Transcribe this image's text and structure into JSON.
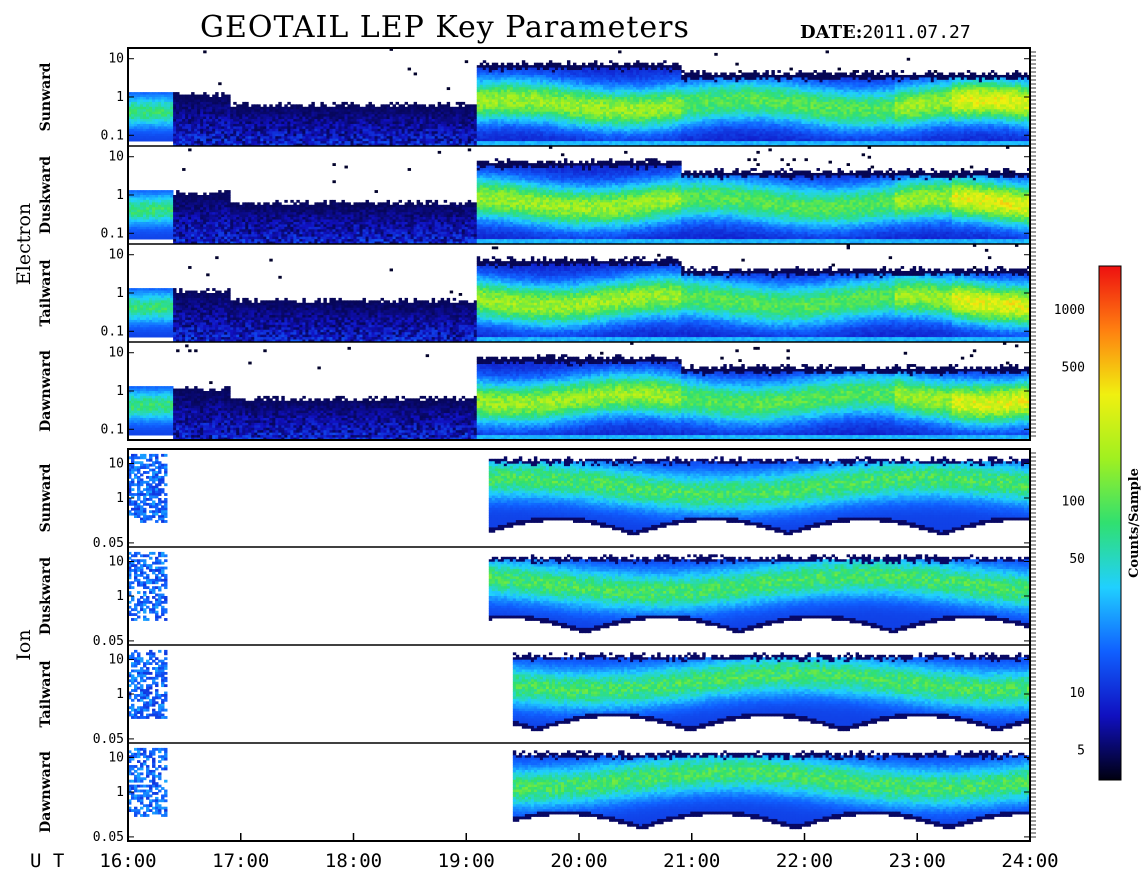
{
  "header": {
    "title": "GEOTAIL LEP Key Parameters",
    "date_label": "DATE:",
    "date_value": "2011.07.27"
  },
  "colors": {
    "background": "#ffffff",
    "axis": "#000000"
  },
  "chart_data": {
    "type": "heatmap",
    "title": "GEOTAIL LEP Key Parameters",
    "date": "2011.07.27",
    "xlabel": "U T",
    "x_ticks": [
      "16:00",
      "17:00",
      "18:00",
      "19:00",
      "20:00",
      "21:00",
      "22:00",
      "23:00",
      "24:00"
    ],
    "xlim": [
      "16:00",
      "24:00"
    ],
    "groups": [
      {
        "name": "Electron",
        "panels": [
          {
            "name": "Sunward",
            "y_ticks": [
              "10",
              "1",
              "0.1"
            ]
          },
          {
            "name": "Duskward",
            "y_ticks": [
              "10",
              "1",
              "0.1"
            ]
          },
          {
            "name": "Tailward",
            "y_ticks": [
              "10",
              "1",
              "0.1"
            ]
          },
          {
            "name": "Dawnward",
            "y_ticks": [
              "10",
              "1",
              "0.1"
            ]
          }
        ]
      },
      {
        "name": "Ion",
        "panels": [
          {
            "name": "Sunward",
            "y_ticks": [
              "10",
              "1",
              "0.05"
            ]
          },
          {
            "name": "Duskward",
            "y_ticks": [
              "10",
              "1",
              "0.05"
            ]
          },
          {
            "name": "Tailward",
            "y_ticks": [
              "10",
              "1",
              "0.05"
            ]
          },
          {
            "name": "Dawnward",
            "y_ticks": [
              "10",
              "1",
              "0.05"
            ]
          }
        ]
      }
    ],
    "y_scale": "log",
    "colorbar": {
      "label": "Counts/Sample",
      "scale": "log",
      "ticks": [
        "1000",
        "500",
        "100",
        "50",
        "10",
        "5"
      ],
      "range": [
        3.5,
        1700
      ],
      "colors": [
        "#000010",
        "#1010c0",
        "#1060ff",
        "#20d0ff",
        "#30e070",
        "#a0f020",
        "#f0f010",
        "#ff8010",
        "#ee1010"
      ]
    }
  }
}
